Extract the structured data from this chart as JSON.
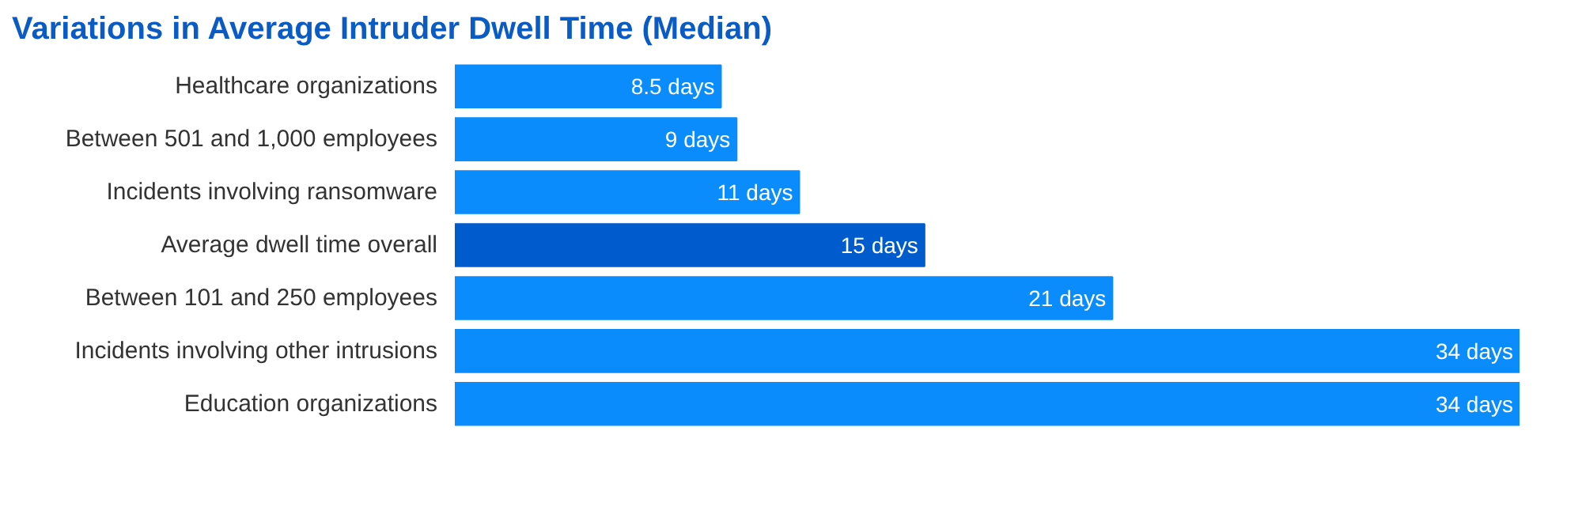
{
  "chart_data": {
    "type": "bar",
    "orientation": "horizontal",
    "title": "Variations in Average Intruder Dwell Time (Median)",
    "categories": [
      "Healthcare organizations",
      "Between 501 and 1,000 employees",
      "Incidents involving ransomware",
      "Average dwell time overall",
      "Between 101 and 250 employees",
      "Incidents involving other intrusions",
      "Education organizations"
    ],
    "values": [
      8.5,
      9,
      11,
      15,
      21,
      34,
      34
    ],
    "colors": [
      "#0a8cfc",
      "#0a8cfc",
      "#0a8cfc",
      "#005ccc",
      "#0a8cfc",
      "#0a8cfc",
      "#0a8cfc"
    ],
    "value_labels": [
      "8.5 days",
      "9 days",
      "11 days",
      "15 days",
      "21 days",
      "34 days",
      "34 days"
    ],
    "grid": false
  }
}
